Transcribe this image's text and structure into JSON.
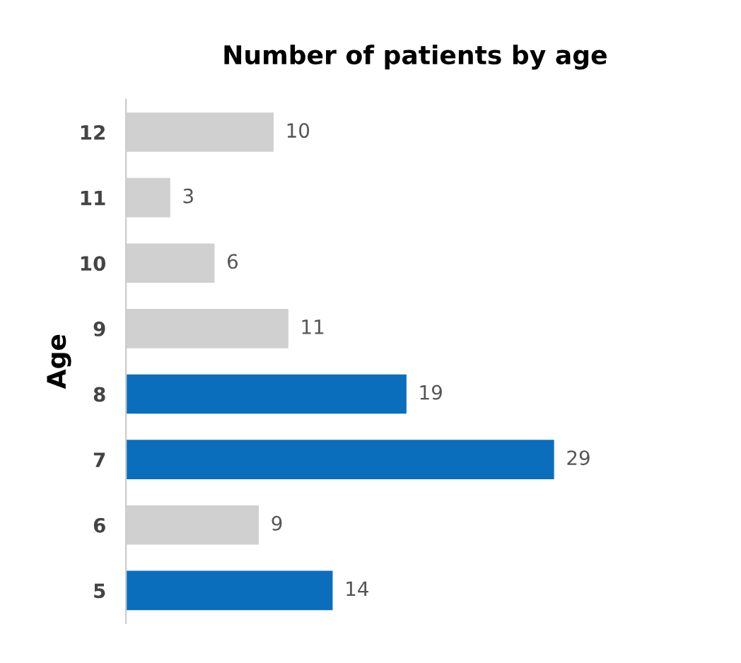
{
  "chart_data": {
    "type": "bar",
    "orientation": "horizontal",
    "title": "Number of patients by age",
    "ylabel": "Age",
    "categories": [
      "12",
      "11",
      "10",
      "9",
      "8",
      "7",
      "6",
      "5"
    ],
    "values": [
      10,
      3,
      6,
      11,
      19,
      29,
      9,
      14
    ],
    "colors": [
      "#d0d0d0",
      "#d0d0d0",
      "#d0d0d0",
      "#d0d0d0",
      "#0a6ebd",
      "#0a6ebd",
      "#d0d0d0",
      "#0a6ebd"
    ],
    "data_labels": true,
    "grid": false,
    "legend": false,
    "tick_labels": "y"
  }
}
